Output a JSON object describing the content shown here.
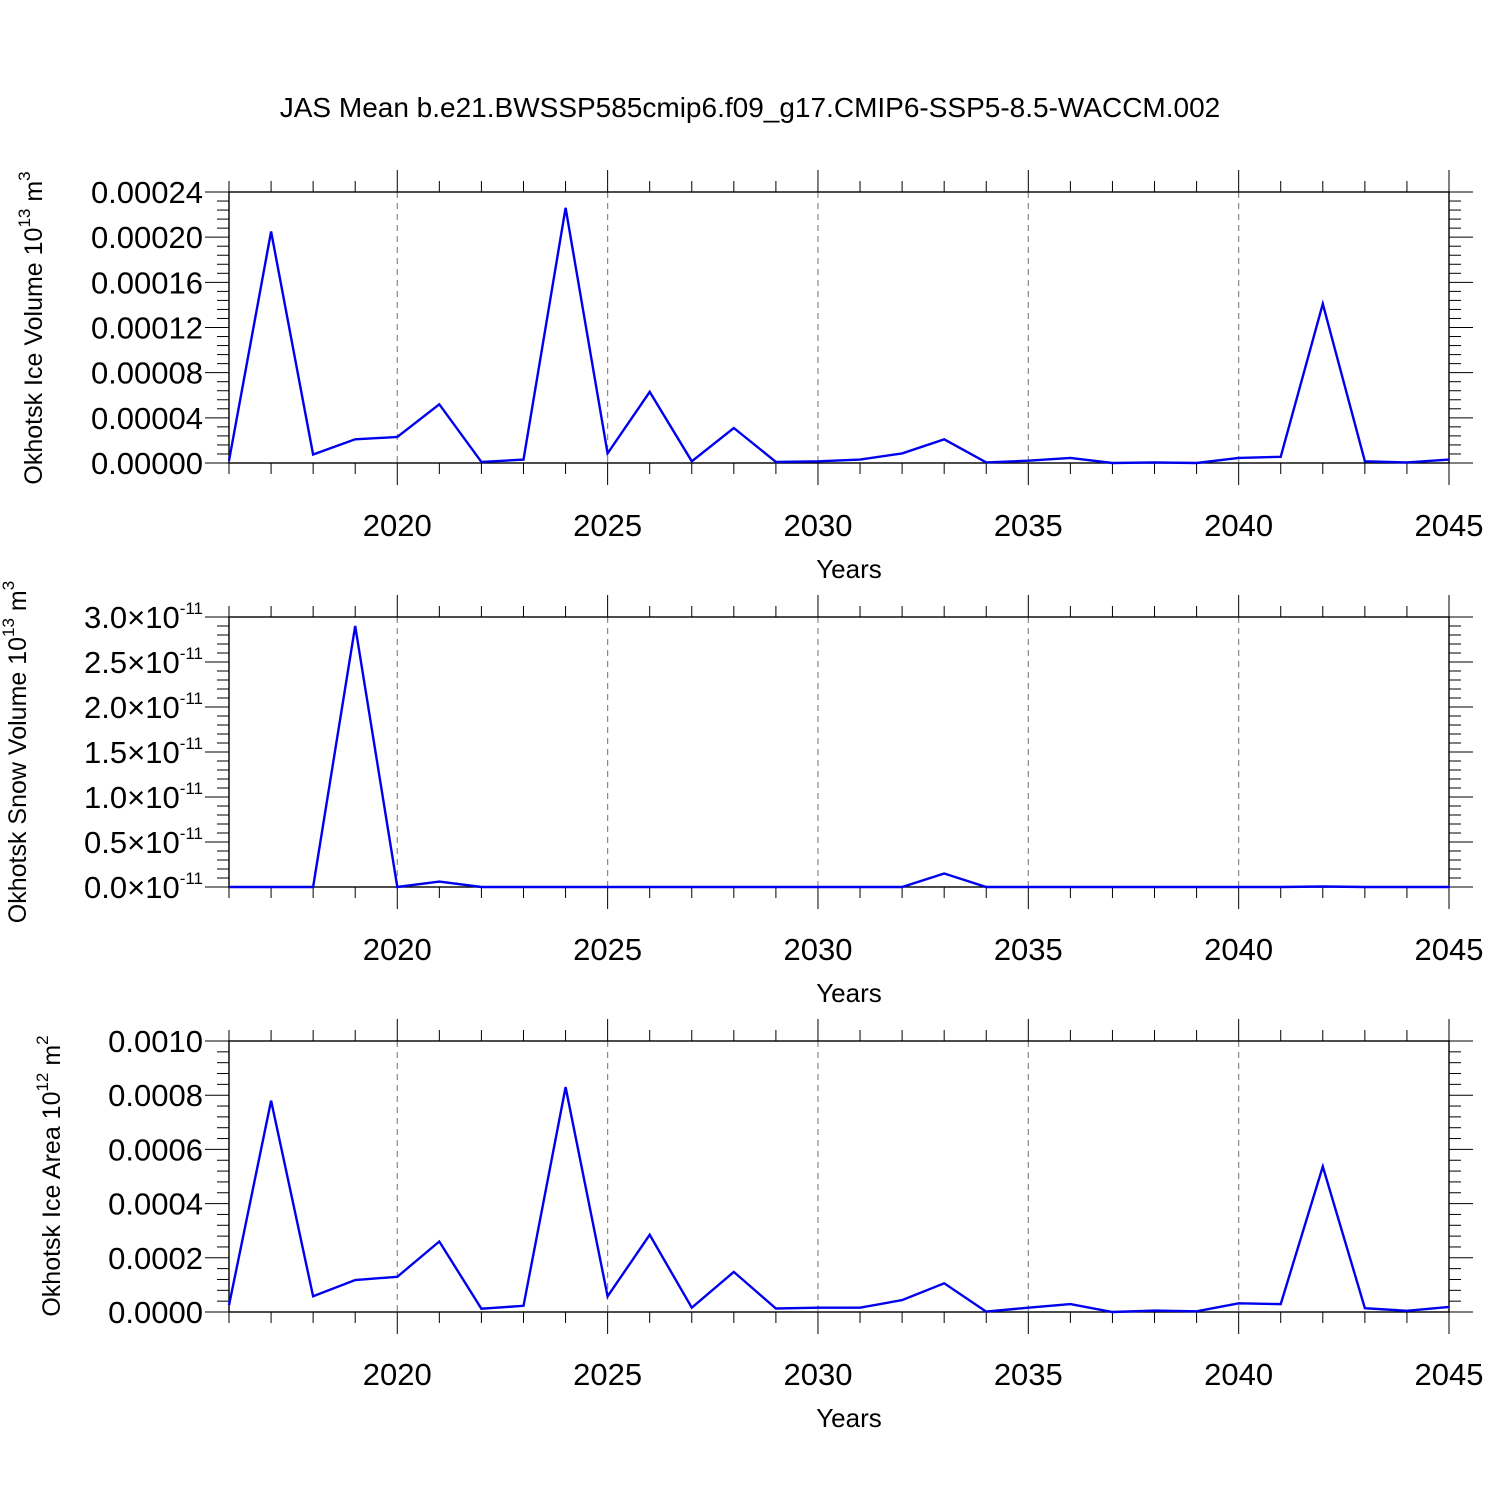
{
  "title": "JAS Mean b.e21.BWSSP585cmip6.f09_g17.CMIP6-SSP5-8.5-WACCM.002",
  "chart_data": [
    {
      "type": "line",
      "ylabel": {
        "text": "Okhotsk Ice Volume 10",
        "exponent": "13",
        "unit": "m",
        "unit_exponent": "3"
      },
      "xlabel": "Years",
      "xlim": [
        2016,
        2045
      ],
      "ylim": [
        0,
        0.00024
      ],
      "yticks": [
        0,
        4e-05,
        8e-05,
        0.00012,
        0.00016,
        0.0002,
        0.00024
      ],
      "ytick_labels": [
        "0.00000",
        "0.00004",
        "0.00008",
        "0.00012",
        "0.00016",
        "0.00020",
        "0.00024"
      ],
      "xticks": [
        2020,
        2025,
        2030,
        2035,
        2040,
        2045
      ],
      "xtick_labels": [
        "2020",
        "2025",
        "2030",
        "2035",
        "2040",
        "2045"
      ],
      "grid": "vertical dashed at major x ticks",
      "series": [
        {
          "color": "#0000ee",
          "x": [
            2016,
            2017,
            2018,
            2019,
            2020,
            2021,
            2022,
            2023,
            2024,
            2025,
            2026,
            2027,
            2028,
            2029,
            2030,
            2031,
            2032,
            2033,
            2034,
            2035,
            2036,
            2037,
            2038,
            2039,
            2040,
            2041,
            2042,
            2043,
            2044,
            2045
          ],
          "y": [
            2e-06,
            0.000205,
            7.5e-06,
            2.1e-05,
            2.3e-05,
            5.2e-05,
            1e-06,
            3e-06,
            0.000226,
            8.5e-06,
            6.3e-05,
            1.5e-06,
            3.1e-05,
            1e-06,
            1.5e-06,
            3e-06,
            8.5e-06,
            2.1e-05,
            5e-07,
            2e-06,
            4.5e-06,
            0,
            5e-07,
            0,
            4.5e-06,
            5.5e-06,
            0.000141,
            1.5e-06,
            5e-07,
            3e-06
          ]
        }
      ]
    },
    {
      "type": "line",
      "ylabel": {
        "text": "Okhotsk Snow Volume 10",
        "exponent": "13",
        "unit": "m",
        "unit_exponent": "3"
      },
      "xlabel": "Years",
      "xlim": [
        2016,
        2045
      ],
      "ylim": [
        0,
        3e-11
      ],
      "yticks": [
        0,
        5e-12,
        1e-11,
        1.5e-11,
        2e-11,
        2.5e-11,
        3e-11
      ],
      "ytick_labels": [
        {
          "mantissa": "0.0",
          "times": "×10",
          "exponent": "-11"
        },
        {
          "mantissa": "0.5",
          "times": "×10",
          "exponent": "-11"
        },
        {
          "mantissa": "1.0",
          "times": "×10",
          "exponent": "-11"
        },
        {
          "mantissa": "1.5",
          "times": "×10",
          "exponent": "-11"
        },
        {
          "mantissa": "2.0",
          "times": "×10",
          "exponent": "-11"
        },
        {
          "mantissa": "2.5",
          "times": "×10",
          "exponent": "-11"
        },
        {
          "mantissa": "3.0",
          "times": "×10",
          "exponent": "-11"
        }
      ],
      "xticks": [
        2020,
        2025,
        2030,
        2035,
        2040,
        2045
      ],
      "xtick_labels": [
        "2020",
        "2025",
        "2030",
        "2035",
        "2040",
        "2045"
      ],
      "grid": "vertical dashed at major x ticks",
      "series": [
        {
          "color": "#0000ee",
          "x": [
            2016,
            2017,
            2018,
            2019,
            2020,
            2021,
            2022,
            2023,
            2024,
            2025,
            2026,
            2027,
            2028,
            2029,
            2030,
            2031,
            2032,
            2033,
            2034,
            2035,
            2036,
            2037,
            2038,
            2039,
            2040,
            2041,
            2042,
            2043,
            2044,
            2045
          ],
          "y": [
            0,
            0,
            0,
            2.9e-11,
            0,
            6e-13,
            0,
            0,
            0,
            0,
            0,
            0,
            0,
            0,
            0,
            0,
            0,
            1.5e-12,
            0,
            0,
            0,
            0,
            0,
            0,
            0,
            0,
            5e-14,
            0,
            0,
            0
          ]
        }
      ]
    },
    {
      "type": "line",
      "ylabel": {
        "text": "Okhotsk Ice Area 10",
        "exponent": "12",
        "unit": "m",
        "unit_exponent": "2"
      },
      "xlabel": "Years",
      "xlim": [
        2016,
        2045
      ],
      "ylim": [
        0,
        0.001
      ],
      "yticks": [
        0,
        0.0002,
        0.0004,
        0.0006,
        0.0008,
        0.001
      ],
      "ytick_labels": [
        "0.0000",
        "0.0002",
        "0.0004",
        "0.0006",
        "0.0008",
        "0.0010"
      ],
      "xticks": [
        2020,
        2025,
        2030,
        2035,
        2040,
        2045
      ],
      "xtick_labels": [
        "2020",
        "2025",
        "2030",
        "2035",
        "2040",
        "2045"
      ],
      "grid": "vertical dashed at major x ticks",
      "series": [
        {
          "color": "#0000ee",
          "x": [
            2016,
            2017,
            2018,
            2019,
            2020,
            2021,
            2022,
            2023,
            2024,
            2025,
            2026,
            2027,
            2028,
            2029,
            2030,
            2031,
            2032,
            2033,
            2034,
            2035,
            2036,
            2037,
            2038,
            2039,
            2040,
            2041,
            2042,
            2043,
            2044,
            2045
          ],
          "y": [
            2.5e-05,
            0.00078,
            5.8e-05,
            0.000118,
            0.00013,
            0.00026,
            1.2e-05,
            2.3e-05,
            0.00083,
            5.8e-05,
            0.000285,
            1.6e-05,
            0.000148,
            1.3e-05,
            1.6e-05,
            1.6e-05,
            4.4e-05,
            0.000106,
            1.5e-06,
            1.6e-05,
            2.9e-05,
            0,
            5e-06,
            2.5e-06,
            3.2e-05,
            2.9e-05,
            0.000537,
            1.4e-05,
            4.5e-06,
            1.9e-05
          ]
        }
      ]
    }
  ]
}
